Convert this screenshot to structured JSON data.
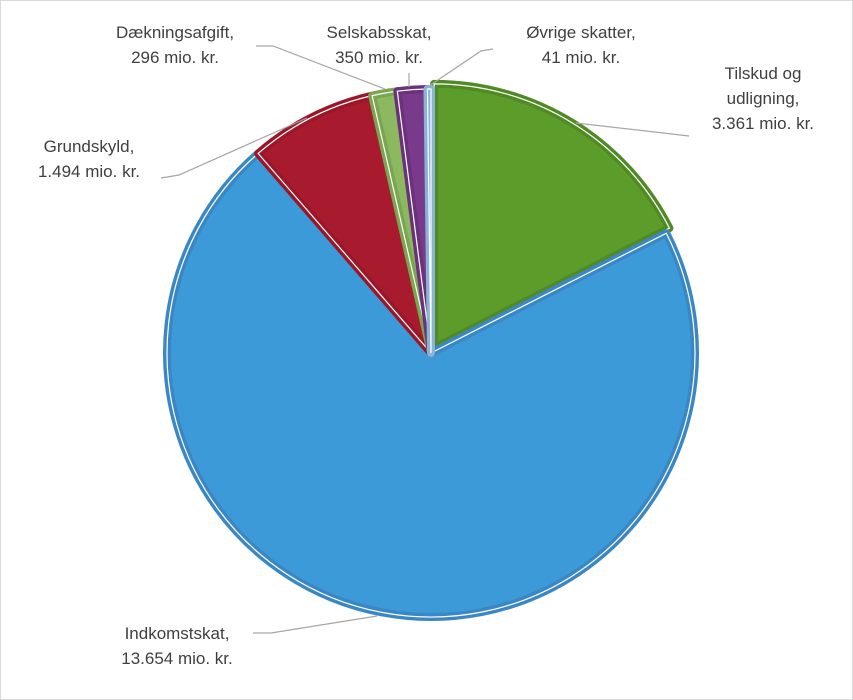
{
  "chart_data": {
    "type": "pie",
    "title": "",
    "unit": "mio. kr.",
    "slices": [
      {
        "name": "Tilskud og udligning",
        "value": 3361,
        "label_lines": [
          "Tilskud og",
          "udligning,",
          "3.361 mio. kr."
        ],
        "color": "#5b9c2a",
        "edge": "#4f8a24"
      },
      {
        "name": "Indkomstskat",
        "value": 13654,
        "label_lines": [
          "Indkomstskat,",
          "13.654 mio. kr."
        ],
        "color": "#3d9ad8",
        "edge": "#3a87c4"
      },
      {
        "name": "Grundskyld",
        "value": 1494,
        "label_lines": [
          "Grundskyld,",
          "1.494 mio. kr."
        ],
        "color": "#a81a2e",
        "edge": "#9a1729"
      },
      {
        "name": "Dækningsafgift",
        "value": 296,
        "label_lines": [
          "Dækningsafgift,",
          "296 mio. kr."
        ],
        "color": "#8cb860",
        "edge": "#7aa651"
      },
      {
        "name": "Selskabsskat",
        "value": 350,
        "label_lines": [
          "Selskabsskat,",
          "350 mio. kr."
        ],
        "color": "#7a3a8c",
        "edge": "#6b327b"
      },
      {
        "name": "Øvrige skatter",
        "value": 41,
        "label_lines": [
          "Øvrige skatter,",
          "41 mio. kr."
        ],
        "color": "#9ec4e6",
        "edge": "#8ab3d8"
      }
    ],
    "legend": "none",
    "start_angle": "12 o'clock",
    "direction": "clockwise"
  }
}
